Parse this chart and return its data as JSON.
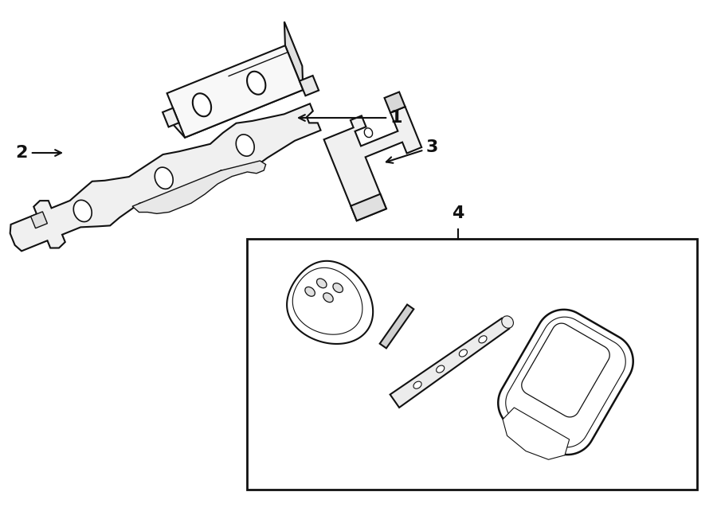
{
  "bg_color": "#ffffff",
  "line_color": "#111111",
  "fig_width": 9.0,
  "fig_height": 6.62,
  "dpi": 100
}
